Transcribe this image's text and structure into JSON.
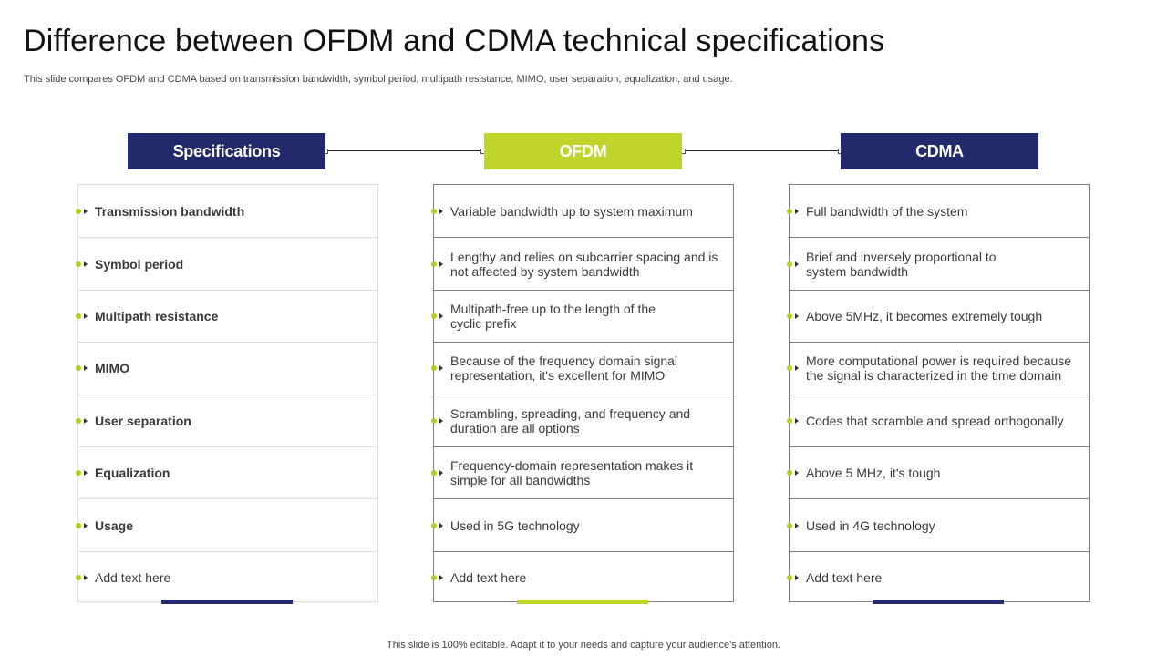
{
  "slide": {
    "title": "Difference between OFDM and CDMA technical specifications",
    "subtitle": "This slide compares OFDM and CDMA  based on transmission bandwidth, symbol period, multipath resistance, MIMO,  user separation, equalization, and usage.",
    "footer": "This slide is 100% editable. Adapt it to your needs and capture your audience's attention."
  },
  "colors": {
    "navy": "#222a6b",
    "lime": "#c0d42c",
    "bullet": "#b5cc1f"
  },
  "columns": [
    {
      "header": "Specifications",
      "rows": [
        "Transmission bandwidth",
        "Symbol period",
        "Multipath resistance",
        "MIMO",
        "User separation",
        "Equalization",
        "Usage",
        "Add text here"
      ]
    },
    {
      "header": "OFDM",
      "rows": [
        "Variable bandwidth up to system maximum",
        "Lengthy and relies on subcarrier spacing and is not affected by system bandwidth",
        "Multipath-free up to the length of the cyclic prefix",
        "Because of the frequency domain signal representation, it's excellent for MIMO",
        "Scrambling, spreading, and frequency and duration are all options",
        "Frequency-domain representation makes it simple for all bandwidths",
        "Used in 5G technology",
        "Add text here"
      ]
    },
    {
      "header": "CDMA",
      "rows": [
        "Full bandwidth of the system",
        "Brief and inversely proportional to system bandwidth",
        "Above 5MHz,  it becomes extremely tough",
        "More computational power is required because the  signal is characterized in the time domain",
        "Codes that scramble and spread orthogonally",
        "Above 5 MHz,  it's tough",
        "Used in 4G technology",
        "Add text here"
      ]
    }
  ]
}
